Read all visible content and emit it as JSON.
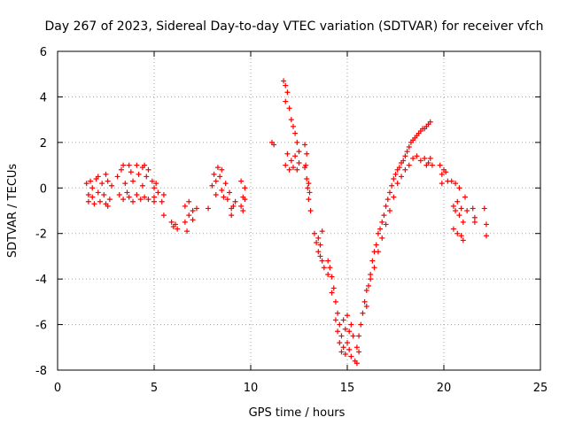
{
  "chart_data": {
    "type": "scatter",
    "title": "Day 267 of 2023, Sidereal Day-to-day VTEC variation (SDTVAR) for receiver vfch",
    "xlabel": "GPS time / hours",
    "ylabel": "SDTVAR / TECUs",
    "xlim": [
      0,
      25
    ],
    "ylim": [
      -8,
      6
    ],
    "xticks": [
      "0",
      "5",
      "10",
      "15",
      "20",
      "25"
    ],
    "yticks": [
      "-8",
      "-6",
      "-4",
      "-2",
      "0",
      "2",
      "4",
      "6"
    ],
    "grid": true,
    "marker": "+",
    "color": "#ff0000",
    "series": [
      {
        "points": [
          [
            1.5,
            0.2
          ],
          [
            1.6,
            -0.3
          ],
          [
            1.6,
            -0.6
          ],
          [
            1.7,
            0.3
          ],
          [
            1.8,
            -0.4
          ],
          [
            1.8,
            0.0
          ],
          [
            1.9,
            -0.7
          ],
          [
            2.0,
            0.4
          ],
          [
            2.1,
            -0.2
          ],
          [
            2.1,
            0.5
          ],
          [
            2.2,
            -0.6
          ],
          [
            2.3,
            0.2
          ],
          [
            2.4,
            -0.3
          ],
          [
            2.5,
            0.6
          ],
          [
            2.5,
            -0.7
          ],
          [
            2.6,
            0.3
          ],
          [
            2.7,
            -0.5
          ],
          [
            2.8,
            0.1
          ],
          [
            2.6,
            -0.8
          ],
          [
            3.1,
            0.5
          ],
          [
            3.2,
            -0.3
          ],
          [
            3.3,
            0.8
          ],
          [
            3.4,
            -0.5
          ],
          [
            3.4,
            1.0
          ],
          [
            3.5,
            0.2
          ],
          [
            3.6,
            -0.2
          ],
          [
            3.7,
            1.0
          ],
          [
            3.7,
            -0.4
          ],
          [
            3.8,
            0.7
          ],
          [
            3.9,
            -0.6
          ],
          [
            3.9,
            0.3
          ],
          [
            4.1,
            1.0
          ],
          [
            4.1,
            -0.3
          ],
          [
            4.2,
            0.6
          ],
          [
            4.3,
            -0.5
          ],
          [
            4.4,
            0.9
          ],
          [
            4.4,
            0.1
          ],
          [
            4.5,
            -0.4
          ],
          [
            4.5,
            1.0
          ],
          [
            4.6,
            0.5
          ],
          [
            4.7,
            -0.5
          ],
          [
            4.7,
            0.8
          ],
          [
            4.9,
            0.3
          ],
          [
            5.0,
            0.0
          ],
          [
            5.0,
            -0.4
          ],
          [
            5.1,
            0.2
          ],
          [
            5.2,
            -0.2
          ],
          [
            5.0,
            -0.6
          ],
          [
            5.4,
            -0.6
          ],
          [
            5.5,
            -0.3
          ],
          [
            5.5,
            -1.2
          ],
          [
            5.9,
            -1.5
          ],
          [
            6.0,
            -1.7
          ],
          [
            6.1,
            -1.6
          ],
          [
            6.2,
            -1.8
          ],
          [
            6.6,
            -0.8
          ],
          [
            6.6,
            -1.5
          ],
          [
            6.7,
            -1.9
          ],
          [
            6.8,
            -1.2
          ],
          [
            6.8,
            -0.6
          ],
          [
            7.0,
            -1.0
          ],
          [
            7.0,
            -1.4
          ],
          [
            7.2,
            -0.9
          ],
          [
            7.8,
            -0.9
          ],
          [
            8.0,
            0.1
          ],
          [
            8.1,
            0.6
          ],
          [
            8.2,
            -0.3
          ],
          [
            8.2,
            0.3
          ],
          [
            8.3,
            0.9
          ],
          [
            8.4,
            0.5
          ],
          [
            8.5,
            0.8
          ],
          [
            8.5,
            -0.1
          ],
          [
            8.6,
            -0.4
          ],
          [
            8.7,
            0.2
          ],
          [
            8.8,
            -0.5
          ],
          [
            8.9,
            -0.2
          ],
          [
            9.0,
            -0.9
          ],
          [
            9.0,
            -1.2
          ],
          [
            9.1,
            -0.8
          ],
          [
            9.2,
            -0.6
          ],
          [
            9.5,
            0.3
          ],
          [
            9.5,
            -0.8
          ],
          [
            9.6,
            -0.4
          ],
          [
            9.6,
            -1.0
          ],
          [
            9.7,
            0.0
          ],
          [
            9.7,
            -0.5
          ],
          [
            11.1,
            2.0
          ],
          [
            11.2,
            1.9
          ],
          [
            11.7,
            4.7
          ],
          [
            11.8,
            4.5
          ],
          [
            11.8,
            3.8
          ],
          [
            11.9,
            4.2
          ],
          [
            11.9,
            1.5
          ],
          [
            11.8,
            1.0
          ],
          [
            12.0,
            3.5
          ],
          [
            12.0,
            0.8
          ],
          [
            12.1,
            3.0
          ],
          [
            12.1,
            1.2
          ],
          [
            12.2,
            2.7
          ],
          [
            12.2,
            0.9
          ],
          [
            12.3,
            2.4
          ],
          [
            12.3,
            1.4
          ],
          [
            12.4,
            2.0
          ],
          [
            12.4,
            0.8
          ],
          [
            12.5,
            1.6
          ],
          [
            12.5,
            1.1
          ],
          [
            12.8,
            1.9
          ],
          [
            12.8,
            0.9
          ],
          [
            12.85,
            1.0
          ],
          [
            12.9,
            1.5
          ],
          [
            12.9,
            0.4
          ],
          [
            12.95,
            0.0
          ],
          [
            13.0,
            0.2
          ],
          [
            13.0,
            -0.5
          ],
          [
            13.05,
            -0.2
          ],
          [
            13.1,
            -1.0
          ],
          [
            13.3,
            -2.0
          ],
          [
            13.4,
            -2.4
          ],
          [
            13.5,
            -2.2
          ],
          [
            13.5,
            -2.8
          ],
          [
            13.6,
            -2.5
          ],
          [
            13.6,
            -3.0
          ],
          [
            13.7,
            -3.2
          ],
          [
            13.7,
            -1.9
          ],
          [
            13.8,
            -3.5
          ],
          [
            14.0,
            -3.2
          ],
          [
            14.0,
            -3.8
          ],
          [
            14.1,
            -3.5
          ],
          [
            14.2,
            -3.9
          ],
          [
            14.2,
            -4.6
          ],
          [
            14.3,
            -4.4
          ],
          [
            14.4,
            -5.0
          ],
          [
            14.4,
            -5.8
          ],
          [
            14.5,
            -5.5
          ],
          [
            14.5,
            -6.3
          ],
          [
            14.6,
            -6.0
          ],
          [
            14.6,
            -6.8
          ],
          [
            14.7,
            -6.5
          ],
          [
            14.7,
            -7.2
          ],
          [
            14.8,
            -5.8
          ],
          [
            14.8,
            -7.0
          ],
          [
            14.9,
            -6.2
          ],
          [
            14.9,
            -7.3
          ],
          [
            15.0,
            -5.6
          ],
          [
            15.0,
            -6.8
          ],
          [
            15.1,
            -6.3
          ],
          [
            15.1,
            -7.1
          ],
          [
            15.2,
            -6.0
          ],
          [
            15.2,
            -7.4
          ],
          [
            15.3,
            -6.5
          ],
          [
            15.4,
            -7.6
          ],
          [
            15.5,
            -7.7
          ],
          [
            15.5,
            -7.0
          ],
          [
            15.6,
            -7.2
          ],
          [
            15.6,
            -6.5
          ],
          [
            15.7,
            -6.0
          ],
          [
            15.8,
            -5.5
          ],
          [
            15.9,
            -5.0
          ],
          [
            16.0,
            -4.5
          ],
          [
            16.0,
            -5.2
          ],
          [
            16.1,
            -4.3
          ],
          [
            16.2,
            -4.0
          ],
          [
            16.2,
            -3.8
          ],
          [
            16.3,
            -3.2
          ],
          [
            16.4,
            -3.5
          ],
          [
            16.4,
            -2.8
          ],
          [
            16.5,
            -2.5
          ],
          [
            16.6,
            -2.8
          ],
          [
            16.6,
            -2.0
          ],
          [
            16.7,
            -1.8
          ],
          [
            16.8,
            -2.2
          ],
          [
            16.8,
            -1.5
          ],
          [
            16.9,
            -1.2
          ],
          [
            17.0,
            -1.6
          ],
          [
            17.0,
            -0.8
          ],
          [
            17.1,
            -0.5
          ],
          [
            17.2,
            -1.0
          ],
          [
            17.2,
            -0.2
          ],
          [
            17.3,
            0.1
          ],
          [
            17.4,
            -0.4
          ],
          [
            17.4,
            0.4
          ],
          [
            17.5,
            0.6
          ],
          [
            17.6,
            0.2
          ],
          [
            17.6,
            0.8
          ],
          [
            17.7,
            0.9
          ],
          [
            17.8,
            0.5
          ],
          [
            17.8,
            1.1
          ],
          [
            17.9,
            1.2
          ],
          [
            18.0,
            0.8
          ],
          [
            18.0,
            1.4
          ],
          [
            18.1,
            1.6
          ],
          [
            18.2,
            1.0
          ],
          [
            18.2,
            1.8
          ],
          [
            18.3,
            2.0
          ],
          [
            18.4,
            1.3
          ],
          [
            18.4,
            2.1
          ],
          [
            18.5,
            2.2
          ],
          [
            18.6,
            1.4
          ],
          [
            18.6,
            2.3
          ],
          [
            18.7,
            2.4
          ],
          [
            18.8,
            1.2
          ],
          [
            18.8,
            2.5
          ],
          [
            18.9,
            2.6
          ],
          [
            19.0,
            1.3
          ],
          [
            19.0,
            2.6
          ],
          [
            19.1,
            2.7
          ],
          [
            19.1,
            1.0
          ],
          [
            19.2,
            1.1
          ],
          [
            19.2,
            2.8
          ],
          [
            19.3,
            1.3
          ],
          [
            19.3,
            2.9
          ],
          [
            19.4,
            1.0
          ],
          [
            19.8,
            1.0
          ],
          [
            19.9,
            0.6
          ],
          [
            19.9,
            0.2
          ],
          [
            20.0,
            0.8
          ],
          [
            20.1,
            0.7
          ],
          [
            20.2,
            0.3
          ],
          [
            20.4,
            0.3
          ],
          [
            20.5,
            -0.8
          ],
          [
            20.5,
            -1.8
          ],
          [
            20.6,
            -1.0
          ],
          [
            20.6,
            0.2
          ],
          [
            20.7,
            -2.0
          ],
          [
            20.7,
            -0.6
          ],
          [
            20.8,
            -1.2
          ],
          [
            20.8,
            0.0
          ],
          [
            20.9,
            -2.1
          ],
          [
            20.9,
            -0.9
          ],
          [
            21.0,
            -1.5
          ],
          [
            21.0,
            -2.3
          ],
          [
            21.1,
            -0.4
          ],
          [
            21.2,
            -1.0
          ],
          [
            21.5,
            -0.9
          ],
          [
            21.6,
            -1.3
          ],
          [
            21.6,
            -1.5
          ],
          [
            22.1,
            -0.9
          ],
          [
            22.2,
            -1.6
          ],
          [
            22.2,
            -2.1
          ]
        ]
      }
    ]
  }
}
